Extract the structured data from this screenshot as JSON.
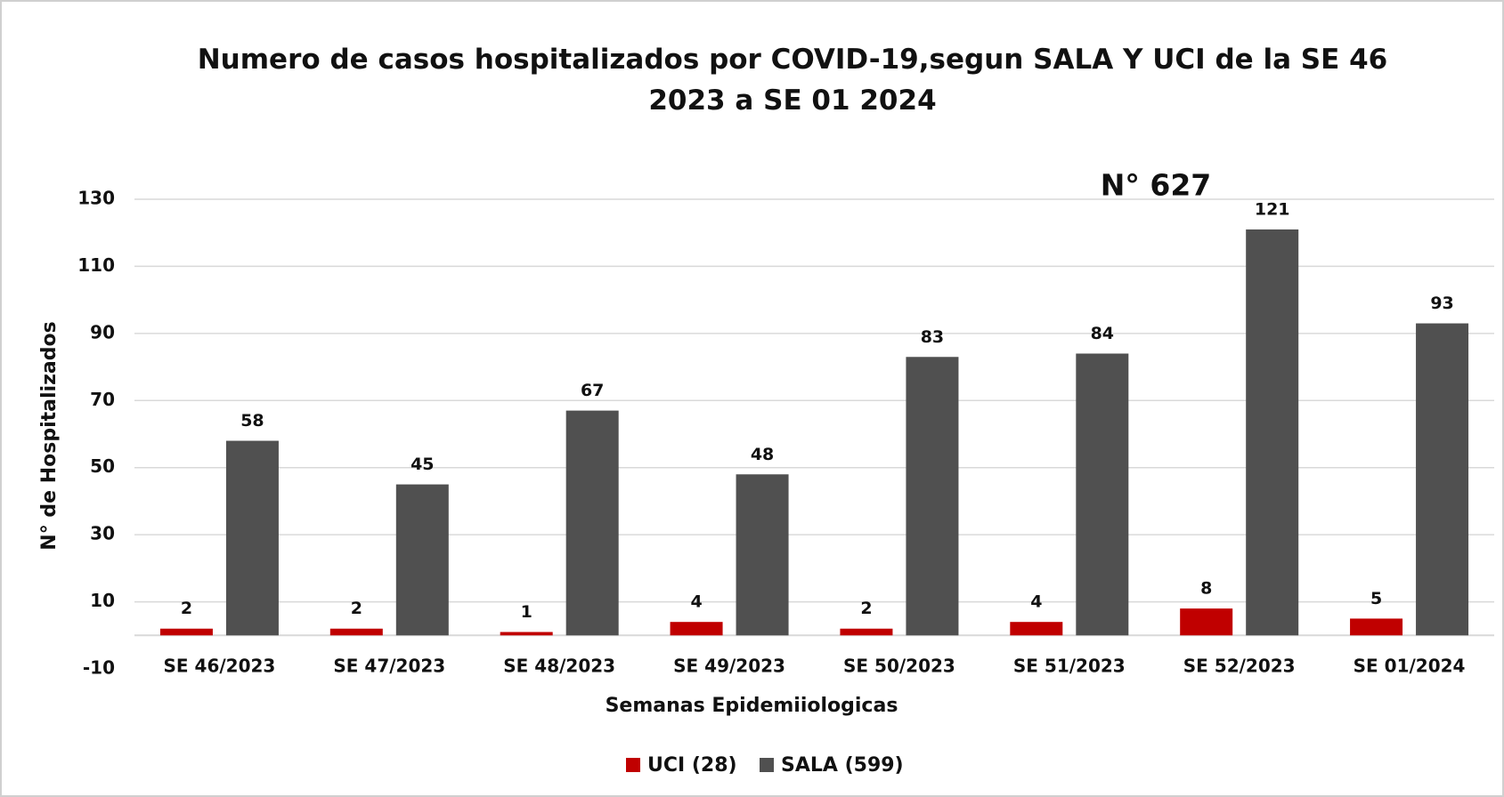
{
  "chart_data": {
    "type": "bar",
    "title": "Numero de casos hospitalizados por COVID-19,segun SALA Y UCI de la SE 46 2023 a SE 01 2024",
    "annotation": "N° 627",
    "x_label": "Semanas Epidemiiologicas",
    "y_label": "N° de Hospitalizados",
    "categories": [
      "SE 46/2023",
      "SE 47/2023",
      "SE 48/2023",
      "SE 49/2023",
      "SE 50/2023",
      "SE 51/2023",
      "SE 52/2023",
      "SE 01/2024"
    ],
    "series": [
      {
        "name": "UCI (28)",
        "color": "#c00000",
        "values": [
          2,
          2,
          1,
          4,
          2,
          4,
          8,
          5
        ]
      },
      {
        "name": "SALA (599)",
        "color": "#505050",
        "values": [
          58,
          45,
          67,
          48,
          83,
          84,
          121,
          93
        ]
      }
    ],
    "ylim": [
      -10,
      130
    ],
    "yticks": [
      -10,
      10,
      30,
      50,
      70,
      90,
      110,
      130
    ],
    "grid": true,
    "legend": "bottom"
  }
}
